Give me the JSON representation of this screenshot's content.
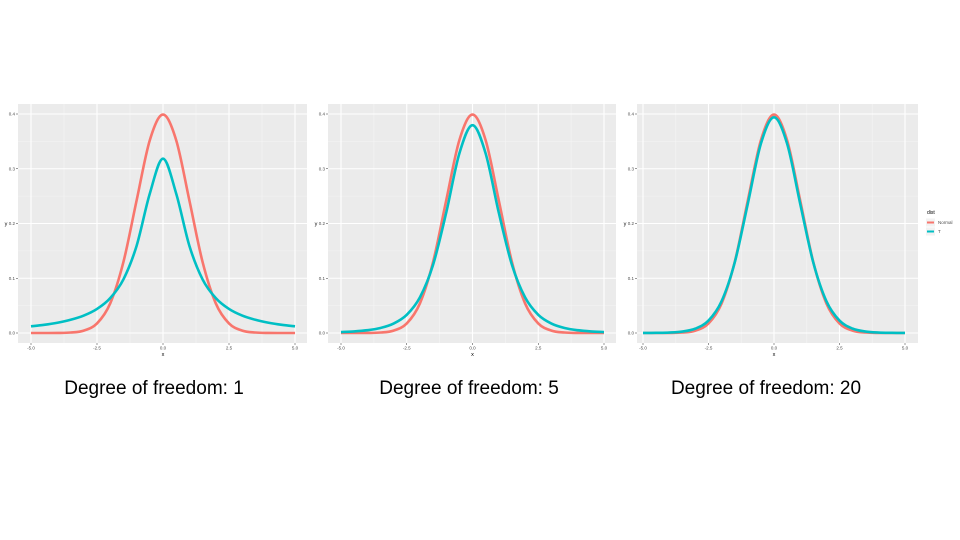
{
  "chart_data": [
    {
      "type": "line",
      "caption": "Degree of freedom: 1",
      "xlabel": "x",
      "ylabel": "y",
      "xlim": [
        -5,
        5
      ],
      "ylim": [
        0,
        0.4
      ],
      "xticks": [
        "-5.0",
        "-2.5",
        "0.0",
        "2.5",
        "5.0"
      ],
      "yticks": [
        "0.0",
        "0.1",
        "0.2",
        "0.3",
        "0.4"
      ],
      "grid": true,
      "x": [
        -5,
        -4.5,
        -4,
        -3.5,
        -3,
        -2.5,
        -2,
        -1.5,
        -1,
        -0.5,
        0,
        0.5,
        1,
        1.5,
        2,
        2.5,
        3,
        3.5,
        4,
        4.5,
        5
      ],
      "series": [
        {
          "name": "Normal",
          "color": "#F8766D",
          "values": [
            0,
            0,
            0.0001,
            0.0009,
            0.0044,
            0.0175,
            0.054,
            0.1295,
            0.242,
            0.3521,
            0.3989,
            0.3521,
            0.242,
            0.1295,
            0.054,
            0.0175,
            0.0044,
            0.0009,
            0.0001,
            0,
            0
          ]
        },
        {
          "name": "T",
          "color": "#00BFC4",
          "values": [
            0.0122,
            0.0149,
            0.0187,
            0.0241,
            0.0318,
            0.0439,
            0.0637,
            0.0979,
            0.1592,
            0.2546,
            0.3183,
            0.2546,
            0.1592,
            0.0979,
            0.0637,
            0.0439,
            0.0318,
            0.0241,
            0.0187,
            0.0149,
            0.0122
          ]
        }
      ]
    },
    {
      "type": "line",
      "caption": "Degree of freedom: 5",
      "xlabel": "x",
      "ylabel": "y",
      "xlim": [
        -5,
        5
      ],
      "ylim": [
        0,
        0.4
      ],
      "xticks": [
        "-5.0",
        "-2.5",
        "0.0",
        "2.5",
        "5.0"
      ],
      "yticks": [
        "0.0",
        "0.1",
        "0.2",
        "0.3",
        "0.4"
      ],
      "grid": true,
      "x": [
        -5,
        -4.5,
        -4,
        -3.5,
        -3,
        -2.5,
        -2,
        -1.5,
        -1,
        -0.5,
        0,
        0.5,
        1,
        1.5,
        2,
        2.5,
        3,
        3.5,
        4,
        4.5,
        5
      ],
      "series": [
        {
          "name": "Normal",
          "color": "#F8766D",
          "values": [
            0,
            0,
            0.0001,
            0.0009,
            0.0044,
            0.0175,
            0.054,
            0.1295,
            0.242,
            0.3521,
            0.3989,
            0.3521,
            0.242,
            0.1295,
            0.054,
            0.0175,
            0.0044,
            0.0009,
            0.0001,
            0,
            0
          ]
        },
        {
          "name": "T",
          "color": "#00BFC4",
          "values": [
            0.0018,
            0.0029,
            0.0051,
            0.0092,
            0.0173,
            0.0333,
            0.0651,
            0.1245,
            0.2197,
            0.3279,
            0.3796,
            0.3279,
            0.2197,
            0.1245,
            0.0651,
            0.0333,
            0.0173,
            0.0092,
            0.0051,
            0.0029,
            0.0018
          ]
        }
      ]
    },
    {
      "type": "line",
      "caption": "Degree of freedom: 20",
      "xlabel": "x",
      "ylabel": "y",
      "xlim": [
        -5,
        5
      ],
      "ylim": [
        0,
        0.4
      ],
      "xticks": [
        "-5.0",
        "-2.5",
        "0.0",
        "2.5",
        "5.0"
      ],
      "yticks": [
        "0.0",
        "0.1",
        "0.2",
        "0.3",
        "0.4"
      ],
      "grid": true,
      "x": [
        -5,
        -4.5,
        -4,
        -3.5,
        -3,
        -2.5,
        -2,
        -1.5,
        -1,
        -0.5,
        0,
        0.5,
        1,
        1.5,
        2,
        2.5,
        3,
        3.5,
        4,
        4.5,
        5
      ],
      "series": [
        {
          "name": "Normal",
          "color": "#F8766D",
          "values": [
            0,
            0,
            0.0001,
            0.0009,
            0.0044,
            0.0175,
            0.054,
            0.1295,
            0.242,
            0.3521,
            0.3989,
            0.3521,
            0.242,
            0.1295,
            0.054,
            0.0175,
            0.0044,
            0.0009,
            0.0001,
            0,
            0
          ]
        },
        {
          "name": "T",
          "color": "#00BFC4",
          "values": [
            0.0001,
            0.0003,
            0.0008,
            0.0026,
            0.008,
            0.0227,
            0.0581,
            0.1286,
            0.236,
            0.3458,
            0.394,
            0.3458,
            0.236,
            0.1286,
            0.0581,
            0.0227,
            0.008,
            0.0026,
            0.0008,
            0.0003,
            0.0001
          ]
        }
      ]
    }
  ],
  "legend": {
    "title": "dist",
    "placement": "right",
    "items": [
      {
        "label": "Normal",
        "color": "#F8766D"
      },
      {
        "label": "T",
        "color": "#00BFC4"
      }
    ]
  }
}
